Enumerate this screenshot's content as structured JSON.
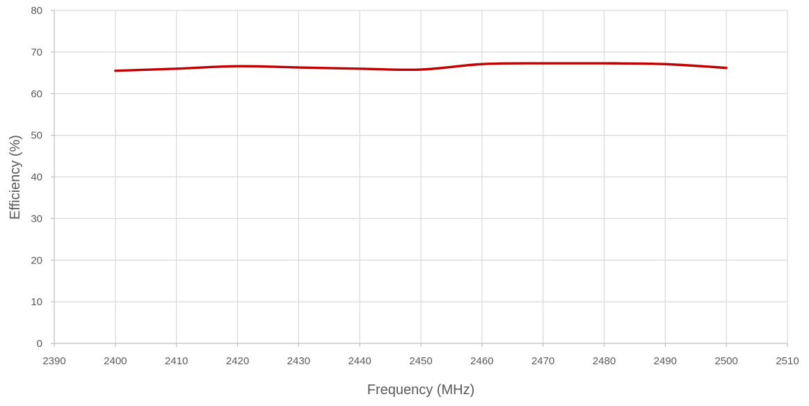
{
  "chart_data": {
    "type": "line",
    "title": "",
    "xlabel": "Frequency (MHz)",
    "ylabel": "Efficiency (%)",
    "xlim": [
      2390,
      2510
    ],
    "ylim": [
      0,
      80
    ],
    "xticks": [
      2390,
      2400,
      2410,
      2420,
      2430,
      2440,
      2450,
      2460,
      2470,
      2480,
      2490,
      2500,
      2510
    ],
    "yticks": [
      0,
      10,
      20,
      30,
      40,
      50,
      60,
      70,
      80
    ],
    "grid": true,
    "legend": "none",
    "series": [
      {
        "color": "#c00000",
        "x": [
          2400,
          2410,
          2420,
          2430,
          2440,
          2450,
          2460,
          2470,
          2480,
          2490,
          2500
        ],
        "y": [
          65.5,
          66.0,
          66.6,
          66.3,
          66.0,
          65.8,
          67.1,
          67.3,
          67.3,
          67.1,
          66.2
        ]
      }
    ]
  }
}
